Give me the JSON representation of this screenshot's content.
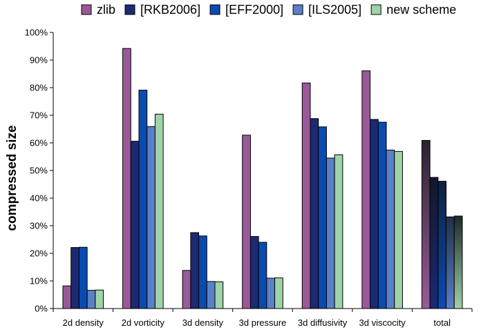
{
  "chart_data": {
    "type": "bar",
    "title": "",
    "xlabel": "",
    "ylabel": "compressed size",
    "ylim": [
      0,
      100
    ],
    "ytick_step": 10,
    "ytick_suffix": "%",
    "legend_position": "top",
    "categories": [
      "2d density",
      "2d vorticity",
      "3d density",
      "3d pressure",
      "3d diffusivity",
      "3d viscocity",
      "total"
    ],
    "series": [
      {
        "name": "zlib",
        "color": "#9a5a9a",
        "values": [
          8.2,
          94.2,
          13.8,
          62.8,
          81.7,
          86.1,
          60.9
        ]
      },
      {
        "name": "[RKB2006]",
        "color": "#1b2a72",
        "values": [
          22.1,
          60.6,
          27.5,
          26.1,
          68.8,
          68.5,
          47.5
        ]
      },
      {
        "name": "[EFF2000]",
        "color": "#0a4bb0",
        "values": [
          22.2,
          79.1,
          26.3,
          24.0,
          65.8,
          67.5,
          46.1
        ]
      },
      {
        "name": "[ILS2005]",
        "color": "#5a80c8",
        "values": [
          6.6,
          65.9,
          9.8,
          11.0,
          54.5,
          57.4,
          33.2
        ]
      },
      {
        "name": "new scheme",
        "color": "#9fd3a8",
        "values": [
          6.7,
          70.4,
          9.7,
          11.1,
          55.7,
          56.9,
          33.5
        ]
      }
    ],
    "grid": false
  }
}
